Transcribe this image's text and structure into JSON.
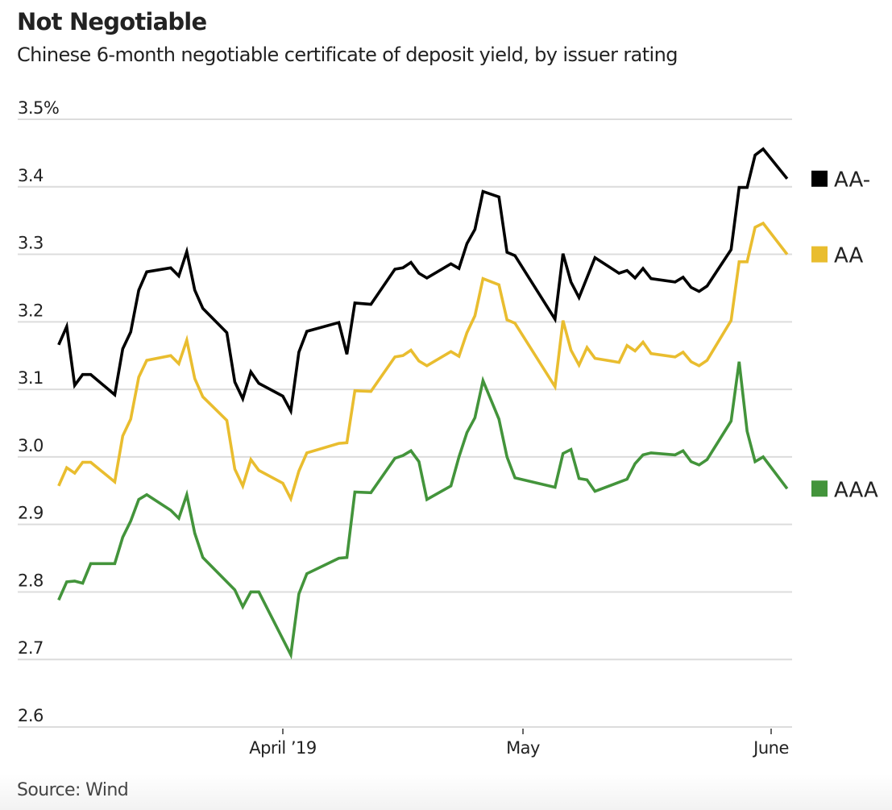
{
  "header": {
    "title": "Not Negotiable",
    "subtitle": "Chinese 6-month negotiable certificate of deposit yield, by issuer rating"
  },
  "footer": {
    "source": "Source: Wind"
  },
  "chart_data": {
    "type": "line",
    "title": "Not Negotiable",
    "subtitle": "Chinese 6-month negotiable certificate of deposit yield, by issuer rating",
    "xlabel": "",
    "ylabel": "",
    "ylim": [
      2.6,
      3.5
    ],
    "xlim": [
      "2019-02-26",
      "2019-06-03"
    ],
    "yticks": [
      3.5,
      3.4,
      3.3,
      3.2,
      3.1,
      3.0,
      2.9,
      2.8,
      2.7,
      2.6
    ],
    "ytick_labels": [
      "3.5%",
      "3.4",
      "3.3",
      "3.2",
      "3.1",
      "3.0",
      "2.9",
      "2.8",
      "2.7",
      "2.6"
    ],
    "xticks": [
      {
        "date": "2019-04-01",
        "label": "April ’19"
      },
      {
        "date": "2019-05-01",
        "label": "May"
      },
      {
        "date": "2019-06-01",
        "label": "June"
      }
    ],
    "grid": true,
    "legend": "right",
    "series": [
      {
        "name": "AA-",
        "color": "#000000",
        "points": [
          [
            "2019-03-04",
            3.166
          ],
          [
            "2019-03-05",
            3.193
          ],
          [
            "2019-03-06",
            3.106
          ],
          [
            "2019-03-07",
            3.122
          ],
          [
            "2019-03-08",
            3.122
          ],
          [
            "2019-03-11",
            3.092
          ],
          [
            "2019-03-12",
            3.16
          ],
          [
            "2019-03-13",
            3.185
          ],
          [
            "2019-03-14",
            3.247
          ],
          [
            "2019-03-15",
            3.274
          ],
          [
            "2019-03-18",
            3.28
          ],
          [
            "2019-03-19",
            3.268
          ],
          [
            "2019-03-20",
            3.304
          ],
          [
            "2019-03-21",
            3.247
          ],
          [
            "2019-03-22",
            3.22
          ],
          [
            "2019-03-25",
            3.184
          ],
          [
            "2019-03-26",
            3.111
          ],
          [
            "2019-03-27",
            3.086
          ],
          [
            "2019-03-28",
            3.126
          ],
          [
            "2019-03-29",
            3.109
          ],
          [
            "2019-04-01",
            3.09
          ],
          [
            "2019-04-02",
            3.068
          ],
          [
            "2019-04-03",
            3.155
          ],
          [
            "2019-04-04",
            3.186
          ],
          [
            "2019-04-08",
            3.199
          ],
          [
            "2019-04-09",
            3.152
          ],
          [
            "2019-04-10",
            3.228
          ],
          [
            "2019-04-12",
            3.226
          ],
          [
            "2019-04-15",
            3.278
          ],
          [
            "2019-04-16",
            3.28
          ],
          [
            "2019-04-17",
            3.288
          ],
          [
            "2019-04-18",
            3.272
          ],
          [
            "2019-04-19",
            3.265
          ],
          [
            "2019-04-22",
            3.286
          ],
          [
            "2019-04-23",
            3.279
          ],
          [
            "2019-04-24",
            3.316
          ],
          [
            "2019-04-25",
            3.337
          ],
          [
            "2019-04-26",
            3.393
          ],
          [
            "2019-04-28",
            3.385
          ],
          [
            "2019-04-29",
            3.303
          ],
          [
            "2019-04-30",
            3.298
          ],
          [
            "2019-05-05",
            3.204
          ],
          [
            "2019-05-06",
            3.301
          ],
          [
            "2019-05-07",
            3.259
          ],
          [
            "2019-05-08",
            3.236
          ],
          [
            "2019-05-10",
            3.295
          ],
          [
            "2019-05-13",
            3.272
          ],
          [
            "2019-05-14",
            3.276
          ],
          [
            "2019-05-15",
            3.265
          ],
          [
            "2019-05-16",
            3.279
          ],
          [
            "2019-05-17",
            3.264
          ],
          [
            "2019-05-20",
            3.259
          ],
          [
            "2019-05-21",
            3.266
          ],
          [
            "2019-05-22",
            3.251
          ],
          [
            "2019-05-23",
            3.245
          ],
          [
            "2019-05-24",
            3.253
          ],
          [
            "2019-05-27",
            3.307
          ],
          [
            "2019-05-28",
            3.399
          ],
          [
            "2019-05-29",
            3.399
          ],
          [
            "2019-05-30",
            3.447
          ],
          [
            "2019-05-31",
            3.456
          ],
          [
            "2019-06-03",
            3.412
          ]
        ]
      },
      {
        "name": "AA",
        "color": "#e9bd2f",
        "points": [
          [
            "2019-03-04",
            2.957
          ],
          [
            "2019-03-05",
            2.984
          ],
          [
            "2019-03-06",
            2.976
          ],
          [
            "2019-03-07",
            2.992
          ],
          [
            "2019-03-08",
            2.992
          ],
          [
            "2019-03-11",
            2.963
          ],
          [
            "2019-03-12",
            3.031
          ],
          [
            "2019-03-13",
            3.056
          ],
          [
            "2019-03-14",
            3.118
          ],
          [
            "2019-03-15",
            3.143
          ],
          [
            "2019-03-18",
            3.15
          ],
          [
            "2019-03-19",
            3.138
          ],
          [
            "2019-03-20",
            3.173
          ],
          [
            "2019-03-21",
            3.116
          ],
          [
            "2019-03-22",
            3.089
          ],
          [
            "2019-03-25",
            3.054
          ],
          [
            "2019-03-26",
            2.982
          ],
          [
            "2019-03-27",
            2.957
          ],
          [
            "2019-03-28",
            2.996
          ],
          [
            "2019-03-29",
            2.98
          ],
          [
            "2019-04-01",
            2.961
          ],
          [
            "2019-04-02",
            2.938
          ],
          [
            "2019-04-03",
            2.979
          ],
          [
            "2019-04-04",
            3.006
          ],
          [
            "2019-04-08",
            3.02
          ],
          [
            "2019-04-09",
            3.021
          ],
          [
            "2019-04-10",
            3.098
          ],
          [
            "2019-04-12",
            3.097
          ],
          [
            "2019-04-15",
            3.148
          ],
          [
            "2019-04-16",
            3.15
          ],
          [
            "2019-04-17",
            3.158
          ],
          [
            "2019-04-18",
            3.142
          ],
          [
            "2019-04-19",
            3.135
          ],
          [
            "2019-04-22",
            3.156
          ],
          [
            "2019-04-23",
            3.149
          ],
          [
            "2019-04-24",
            3.184
          ],
          [
            "2019-04-25",
            3.209
          ],
          [
            "2019-04-26",
            3.264
          ],
          [
            "2019-04-28",
            3.255
          ],
          [
            "2019-04-29",
            3.203
          ],
          [
            "2019-04-30",
            3.198
          ],
          [
            "2019-05-05",
            3.104
          ],
          [
            "2019-05-06",
            3.202
          ],
          [
            "2019-05-07",
            3.158
          ],
          [
            "2019-05-08",
            3.136
          ],
          [
            "2019-05-09",
            3.162
          ],
          [
            "2019-05-10",
            3.146
          ],
          [
            "2019-05-13",
            3.14
          ],
          [
            "2019-05-14",
            3.165
          ],
          [
            "2019-05-15",
            3.157
          ],
          [
            "2019-05-16",
            3.17
          ],
          [
            "2019-05-17",
            3.153
          ],
          [
            "2019-05-20",
            3.148
          ],
          [
            "2019-05-21",
            3.155
          ],
          [
            "2019-05-22",
            3.141
          ],
          [
            "2019-05-23",
            3.135
          ],
          [
            "2019-05-24",
            3.143
          ],
          [
            "2019-05-27",
            3.202
          ],
          [
            "2019-05-28",
            3.289
          ],
          [
            "2019-05-29",
            3.289
          ],
          [
            "2019-05-30",
            3.34
          ],
          [
            "2019-05-31",
            3.346
          ],
          [
            "2019-06-03",
            3.3
          ]
        ]
      },
      {
        "name": "AAA",
        "color": "#43943b",
        "points": [
          [
            "2019-03-04",
            2.788
          ],
          [
            "2019-03-05",
            2.815
          ],
          [
            "2019-03-06",
            2.816
          ],
          [
            "2019-03-07",
            2.813
          ],
          [
            "2019-03-08",
            2.842
          ],
          [
            "2019-03-11",
            2.842
          ],
          [
            "2019-03-12",
            2.881
          ],
          [
            "2019-03-13",
            2.905
          ],
          [
            "2019-03-14",
            2.937
          ],
          [
            "2019-03-15",
            2.944
          ],
          [
            "2019-03-18",
            2.921
          ],
          [
            "2019-03-19",
            2.909
          ],
          [
            "2019-03-20",
            2.944
          ],
          [
            "2019-03-21",
            2.887
          ],
          [
            "2019-03-22",
            2.851
          ],
          [
            "2019-03-26",
            2.803
          ],
          [
            "2019-03-27",
            2.778
          ],
          [
            "2019-03-28",
            2.8
          ],
          [
            "2019-03-29",
            2.8
          ],
          [
            "2019-04-02",
            2.707
          ],
          [
            "2019-04-03",
            2.797
          ],
          [
            "2019-04-04",
            2.827
          ],
          [
            "2019-04-08",
            2.85
          ],
          [
            "2019-04-09",
            2.851
          ],
          [
            "2019-04-10",
            2.948
          ],
          [
            "2019-04-12",
            2.947
          ],
          [
            "2019-04-15",
            2.998
          ],
          [
            "2019-04-16",
            3.002
          ],
          [
            "2019-04-17",
            3.009
          ],
          [
            "2019-04-18",
            2.993
          ],
          [
            "2019-04-19",
            2.937
          ],
          [
            "2019-04-22",
            2.957
          ],
          [
            "2019-04-23",
            3.0
          ],
          [
            "2019-04-24",
            3.036
          ],
          [
            "2019-04-25",
            3.058
          ],
          [
            "2019-04-26",
            3.113
          ],
          [
            "2019-04-28",
            3.056
          ],
          [
            "2019-04-29",
            3.0
          ],
          [
            "2019-04-30",
            2.969
          ],
          [
            "2019-05-05",
            2.955
          ],
          [
            "2019-05-06",
            3.005
          ],
          [
            "2019-05-07",
            3.011
          ],
          [
            "2019-05-08",
            2.968
          ],
          [
            "2019-05-09",
            2.966
          ],
          [
            "2019-05-10",
            2.949
          ],
          [
            "2019-05-14",
            2.967
          ],
          [
            "2019-05-15",
            2.99
          ],
          [
            "2019-05-16",
            3.003
          ],
          [
            "2019-05-17",
            3.006
          ],
          [
            "2019-05-20",
            3.003
          ],
          [
            "2019-05-21",
            3.009
          ],
          [
            "2019-05-22",
            2.993
          ],
          [
            "2019-05-23",
            2.988
          ],
          [
            "2019-05-24",
            2.996
          ],
          [
            "2019-05-27",
            3.053
          ],
          [
            "2019-05-28",
            3.141
          ],
          [
            "2019-05-29",
            3.038
          ],
          [
            "2019-05-30",
            2.993
          ],
          [
            "2019-05-31",
            3.0
          ],
          [
            "2019-06-03",
            2.953
          ]
        ]
      }
    ],
    "legend_entries": [
      {
        "label": "AA-",
        "color": "#000000",
        "anchor": 3.412
      },
      {
        "label": "AA",
        "color": "#e9bd2f",
        "anchor": 3.3
      },
      {
        "label": "AAA",
        "color": "#43943b",
        "anchor": 2.953
      }
    ]
  }
}
